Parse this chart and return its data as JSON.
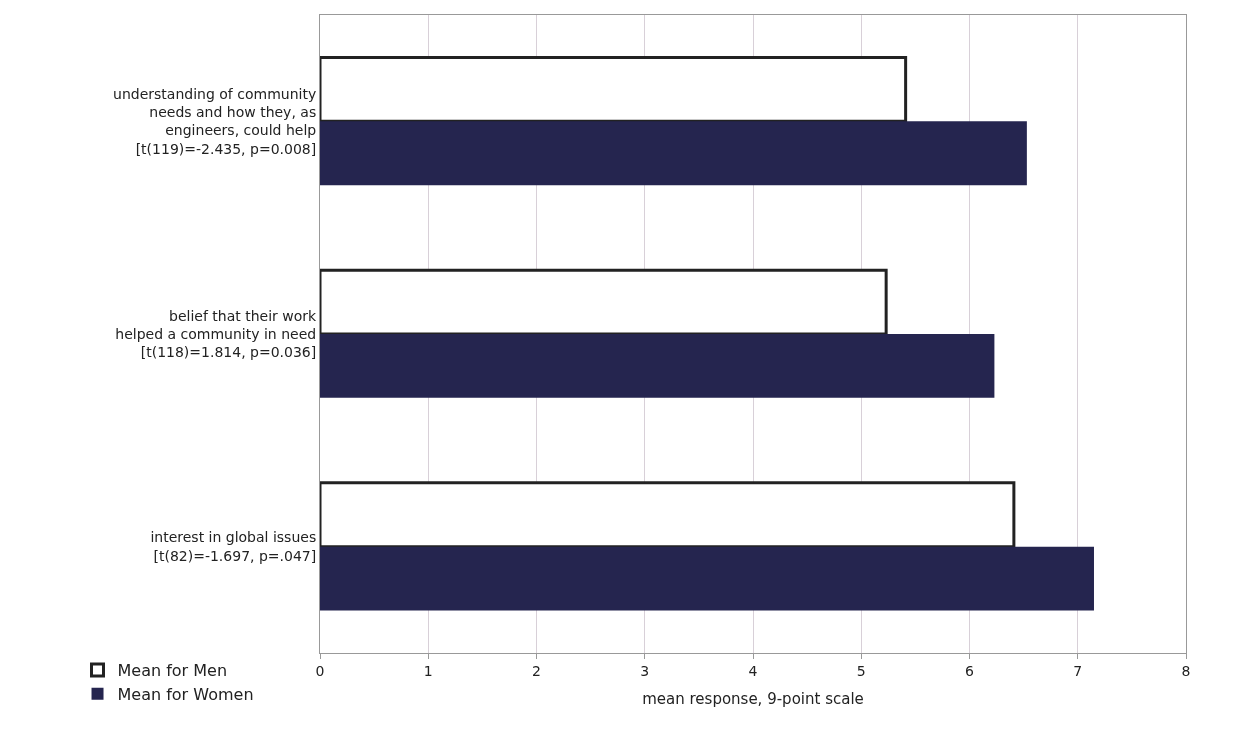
{
  "chart_data": {
    "type": "bar",
    "orientation": "horizontal",
    "xlabel": "mean response, 9-point scale",
    "categories": [
      "understanding of community needs and how they, as engineers, could help [t(119)=-2.435, p=0.008]",
      "belief that their work helped a community in need [t(118)=1.814, p=0.036]",
      "interest in global issues [t(82)=-1.697, p=.047]"
    ],
    "series": [
      {
        "name": "Mean for Men",
        "color": "#ffffff",
        "values": [
          5.41,
          5.23,
          6.41
        ]
      },
      {
        "name": "Mean for Women",
        "color": "#25254f",
        "values": [
          6.53,
          6.23,
          7.15
        ]
      }
    ],
    "xlim": [
      0,
      8
    ],
    "xticks": [
      0,
      1,
      2,
      3,
      4,
      5,
      6,
      7,
      8
    ],
    "grid": "x",
    "legend": "bottom left"
  }
}
